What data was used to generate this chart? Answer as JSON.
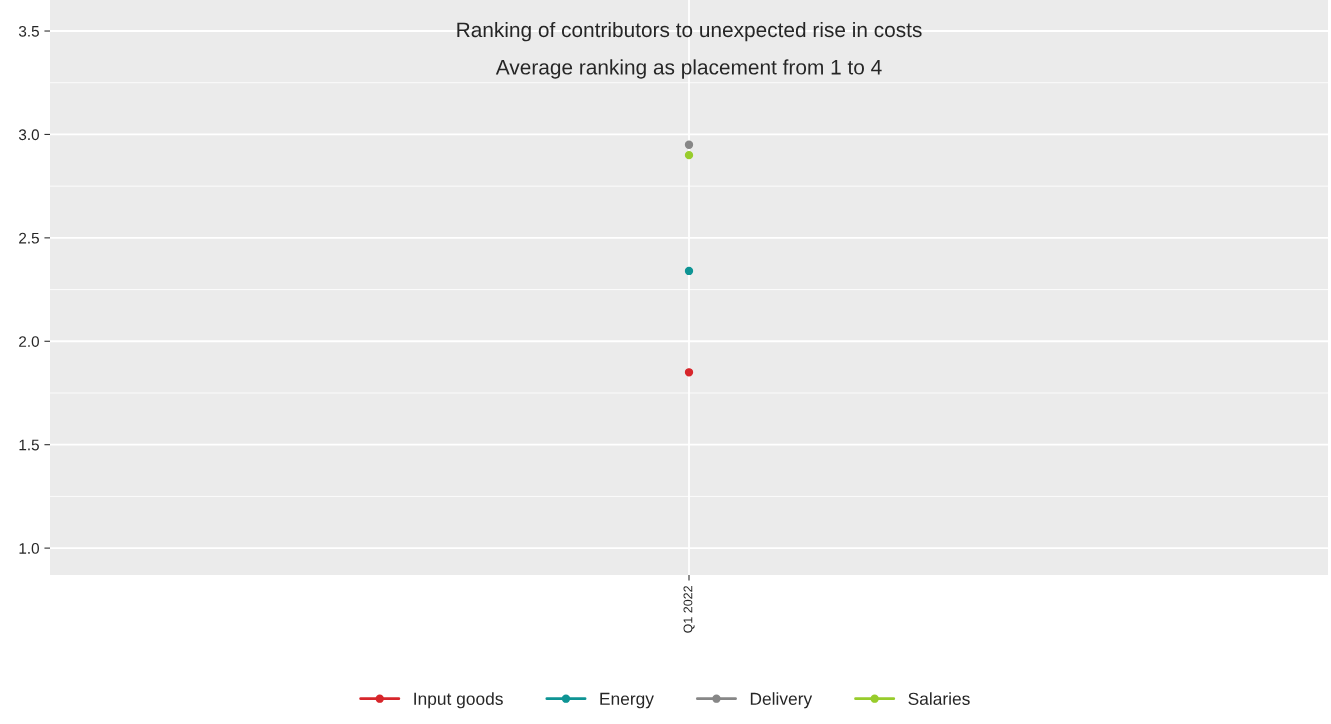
{
  "chart_data": {
    "type": "line",
    "title": "Ranking of contributors to unexpected rise in costs",
    "subtitle": "Average ranking as placement from 1 to 4",
    "categories": [
      "Q1 2022"
    ],
    "series": [
      {
        "name": "Input goods",
        "color": "#d7262b",
        "values": [
          1.85
        ]
      },
      {
        "name": "Energy",
        "color": "#0e9494",
        "values": [
          2.34
        ]
      },
      {
        "name": "Delivery",
        "color": "#878787",
        "values": [
          2.95
        ]
      },
      {
        "name": "Salaries",
        "color": "#98cc2c",
        "values": [
          2.9
        ]
      }
    ],
    "ylim": [
      0.87,
      3.65
    ],
    "yticks": [
      {
        "value": 1.0,
        "label": "1.0"
      },
      1.5,
      {
        "value": 2.0,
        "label": "2.0"
      },
      2.5,
      {
        "value": 3.0,
        "label": "3.0"
      },
      3.5
    ],
    "grid": true,
    "legend": "bottom",
    "marker": "circle"
  }
}
